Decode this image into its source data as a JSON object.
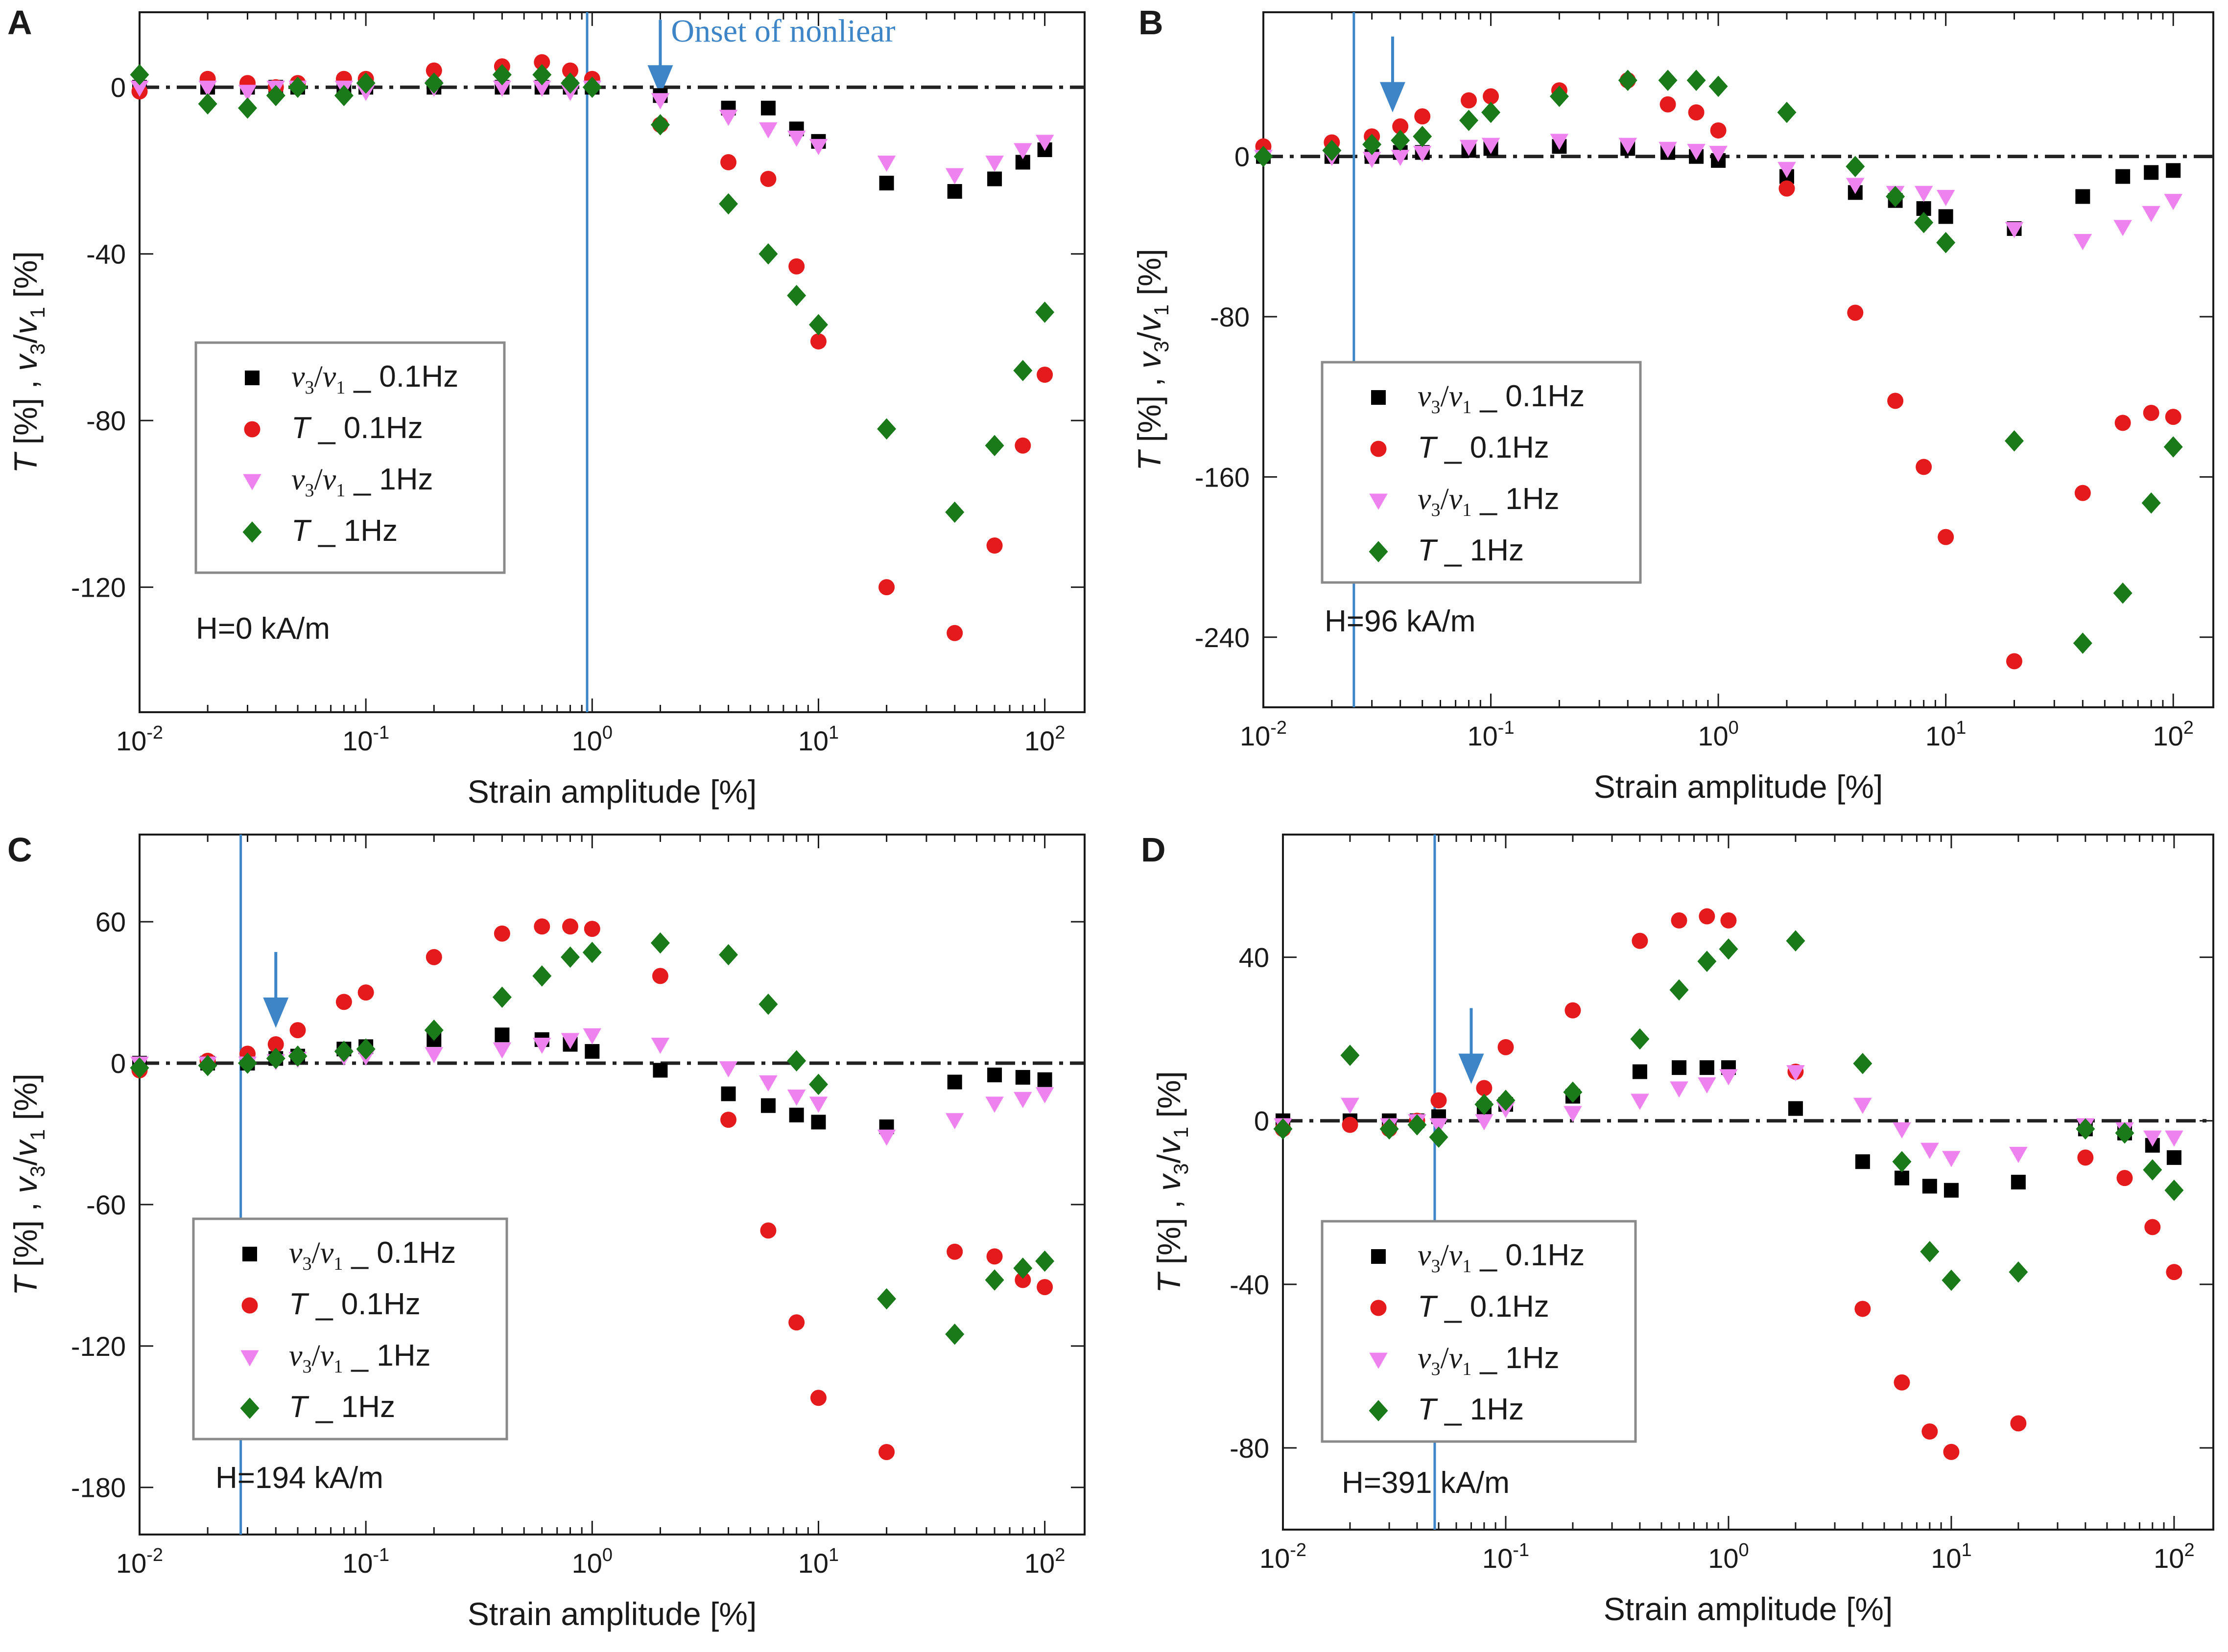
{
  "figure": {
    "xlabel": "Strain amplitude [%]",
    "ylabel_parts": [
      "T",
      " [%] , ",
      "v",
      "3",
      "/",
      "v",
      "1",
      " [%]"
    ],
    "colors": {
      "axis": "#1a1a1a",
      "vline": "#3d85c6",
      "arrow": "#3d85c6",
      "v31_01": "#000000",
      "T_01": "#e41a1c",
      "v31_1": "#ee82ee",
      "T_1": "#1a7a1a"
    },
    "legend_entries": [
      {
        "key": "v31_01",
        "marker": "square",
        "sym_a": "v",
        "sub_a": "3",
        "sym_b": "v",
        "sub_b": "1",
        "suffix": " _ 0.1Hz"
      },
      {
        "key": "T_01",
        "marker": "circle",
        "sym_a": "T",
        "suffix": " _ 0.1Hz"
      },
      {
        "key": "v31_1",
        "marker": "triangle",
        "sym_a": "v",
        "sub_a": "3",
        "sym_b": "v",
        "sub_b": "1",
        "suffix": " _ 1Hz"
      },
      {
        "key": "T_1",
        "marker": "diamond",
        "sym_a": "T",
        "suffix": " _ 1Hz"
      }
    ]
  },
  "chart_data": [
    {
      "panel_label": "A",
      "type": "scatter",
      "x_scale": "log",
      "xlim": [
        0.01,
        150
      ],
      "ylim": [
        -150,
        18
      ],
      "yticks": [
        0,
        -40,
        -80,
        -120
      ],
      "x_tick_labels": [
        {
          "value": 0.01,
          "base": "10",
          "exp": "-2"
        },
        {
          "value": 0.1,
          "base": "10",
          "exp": "-1"
        },
        {
          "value": 1,
          "base": "10",
          "exp": "0"
        },
        {
          "value": 10,
          "base": "10",
          "exp": "1"
        },
        {
          "value": 100,
          "base": "10",
          "exp": "2"
        }
      ],
      "field_label": "H=0 kA/m",
      "vline_x": 0.95,
      "arrow_x": 2.0,
      "arrow_tip_y": -2,
      "annotation": "Onset of nonliear",
      "series": [
        {
          "key": "v31_01",
          "x": [
            0.01,
            0.02,
            0.03,
            0.04,
            0.05,
            0.08,
            0.1,
            0.2,
            0.4,
            0.6,
            0.8,
            1,
            2,
            4,
            6,
            8,
            10,
            20,
            40,
            60,
            80,
            100
          ],
          "y": [
            0,
            0,
            0,
            0,
            0,
            0,
            0,
            0,
            0,
            0,
            0,
            0,
            -2,
            -5,
            -5,
            -10,
            -13,
            -23,
            -25,
            -22,
            -18,
            -15
          ]
        },
        {
          "key": "T_01",
          "x": [
            0.01,
            0.02,
            0.03,
            0.04,
            0.05,
            0.08,
            0.1,
            0.2,
            0.4,
            0.6,
            0.8,
            1,
            2,
            4,
            6,
            8,
            10,
            20,
            40,
            60,
            80,
            100
          ],
          "y": [
            -1,
            2,
            1,
            0,
            1,
            2,
            2,
            4,
            5,
            6,
            4,
            2,
            -9,
            -18,
            -22,
            -43,
            -61,
            -120,
            -131,
            -110,
            -86,
            -69
          ]
        },
        {
          "key": "v31_1",
          "x": [
            0.01,
            0.02,
            0.03,
            0.04,
            0.05,
            0.08,
            0.1,
            0.2,
            0.4,
            0.6,
            0.8,
            1,
            2,
            4,
            6,
            8,
            10,
            20,
            40,
            60,
            80,
            100
          ],
          "y": [
            0,
            0,
            -1,
            0,
            0,
            0,
            -1,
            0,
            0,
            0,
            -1,
            0,
            -3,
            -7,
            -10,
            -12,
            -14,
            -18,
            -21,
            -18,
            -15,
            -13
          ]
        },
        {
          "key": "T_1",
          "x": [
            0.01,
            0.02,
            0.03,
            0.04,
            0.05,
            0.08,
            0.1,
            0.2,
            0.4,
            0.6,
            0.8,
            1,
            2,
            4,
            6,
            8,
            10,
            20,
            40,
            60,
            80,
            100
          ],
          "y": [
            3,
            -4,
            -5,
            -2,
            0,
            -2,
            1,
            1,
            3,
            3,
            1,
            0,
            -9,
            -28,
            -40,
            -50,
            -57,
            -82,
            -102,
            -86,
            -68,
            -54
          ]
        }
      ]
    },
    {
      "panel_label": "B",
      "type": "scatter",
      "x_scale": "log",
      "xlim": [
        0.01,
        150
      ],
      "ylim": [
        -275,
        72
      ],
      "yticks": [
        0,
        -80,
        -160,
        -240
      ],
      "x_tick_labels": [
        {
          "value": 0.01,
          "base": "10",
          "exp": "-2"
        },
        {
          "value": 0.1,
          "base": "10",
          "exp": "-1"
        },
        {
          "value": 1,
          "base": "10",
          "exp": "0"
        },
        {
          "value": 10,
          "base": "10",
          "exp": "1"
        },
        {
          "value": 100,
          "base": "10",
          "exp": "2"
        }
      ],
      "field_label": "H=96 kA/m",
      "vline_x": 0.025,
      "arrow_x": 0.037,
      "arrow_tip_y": 22,
      "series": [
        {
          "key": "v31_01",
          "x": [
            0.01,
            0.02,
            0.03,
            0.04,
            0.05,
            0.08,
            0.1,
            0.2,
            0.4,
            0.6,
            0.8,
            1,
            2,
            4,
            6,
            8,
            10,
            20,
            40,
            60,
            80,
            100
          ],
          "y": [
            0,
            0,
            0,
            2,
            2,
            3,
            4,
            5,
            4,
            2,
            0,
            -2,
            -10,
            -18,
            -22,
            -26,
            -30,
            -36,
            -20,
            -10,
            -8,
            -7
          ]
        },
        {
          "key": "T_01",
          "x": [
            0.01,
            0.02,
            0.03,
            0.04,
            0.05,
            0.08,
            0.1,
            0.2,
            0.4,
            0.6,
            0.8,
            1,
            2,
            4,
            6,
            8,
            10,
            20,
            40,
            60,
            80,
            100
          ],
          "y": [
            5,
            7,
            10,
            15,
            20,
            28,
            30,
            33,
            38,
            26,
            22,
            13,
            -16,
            -78,
            -122,
            -155,
            -190,
            -252,
            -168,
            -133,
            -128,
            -130
          ]
        },
        {
          "key": "v31_1",
          "x": [
            0.01,
            0.02,
            0.03,
            0.04,
            0.05,
            0.08,
            0.1,
            0.2,
            0.4,
            0.6,
            0.8,
            1,
            2,
            4,
            6,
            8,
            10,
            20,
            40,
            60,
            80,
            100
          ],
          "y": [
            0,
            0,
            -1,
            0,
            2,
            5,
            6,
            8,
            6,
            4,
            3,
            2,
            -6,
            -14,
            -18,
            -18,
            -20,
            -36,
            -42,
            -35,
            -28,
            -22
          ]
        },
        {
          "key": "T_1",
          "x": [
            0.01,
            0.02,
            0.03,
            0.04,
            0.05,
            0.08,
            0.1,
            0.2,
            0.4,
            0.6,
            0.8,
            1,
            2,
            4,
            6,
            8,
            10,
            20,
            40,
            60,
            80,
            100
          ],
          "y": [
            0,
            3,
            6,
            8,
            10,
            18,
            22,
            30,
            38,
            38,
            38,
            35,
            22,
            -5,
            -20,
            -33,
            -43,
            -142,
            -243,
            -218,
            -173,
            -145
          ]
        }
      ]
    },
    {
      "panel_label": "C",
      "type": "scatter",
      "x_scale": "log",
      "xlim": [
        0.01,
        150
      ],
      "ylim": [
        -200,
        97
      ],
      "yticks": [
        60,
        0,
        -60,
        -120,
        -180
      ],
      "x_tick_labels": [
        {
          "value": 0.01,
          "base": "10",
          "exp": "-2"
        },
        {
          "value": 0.1,
          "base": "10",
          "exp": "-1"
        },
        {
          "value": 1,
          "base": "10",
          "exp": "0"
        },
        {
          "value": 10,
          "base": "10",
          "exp": "1"
        },
        {
          "value": 100,
          "base": "10",
          "exp": "2"
        }
      ],
      "field_label": "H=194 kA/m",
      "vline_x": 0.028,
      "arrow_x": 0.04,
      "arrow_tip_y": 15,
      "series": [
        {
          "key": "v31_01",
          "x": [
            0.01,
            0.02,
            0.03,
            0.04,
            0.05,
            0.08,
            0.1,
            0.2,
            0.4,
            0.6,
            0.8,
            1,
            2,
            4,
            6,
            8,
            10,
            20,
            40,
            60,
            80,
            100
          ],
          "y": [
            0,
            0,
            0,
            2,
            3,
            6,
            7,
            10,
            12,
            10,
            8,
            5,
            -3,
            -13,
            -18,
            -22,
            -25,
            -27,
            -8,
            -5,
            -6,
            -7
          ]
        },
        {
          "key": "T_01",
          "x": [
            0.01,
            0.02,
            0.03,
            0.04,
            0.05,
            0.08,
            0.1,
            0.2,
            0.4,
            0.6,
            0.8,
            1,
            2,
            4,
            6,
            8,
            10,
            20,
            40,
            60,
            80,
            100
          ],
          "y": [
            -3,
            1,
            4,
            8,
            14,
            26,
            30,
            45,
            55,
            58,
            58,
            57,
            37,
            -24,
            -71,
            -110,
            -142,
            -165,
            -80,
            -82,
            -92,
            -95
          ]
        },
        {
          "key": "v31_1",
          "x": [
            0.01,
            0.02,
            0.03,
            0.04,
            0.05,
            0.08,
            0.1,
            0.2,
            0.4,
            0.6,
            0.8,
            1,
            2,
            4,
            6,
            8,
            10,
            20,
            40,
            60,
            80,
            100
          ],
          "y": [
            0,
            0,
            0,
            1,
            2,
            3,
            3,
            4,
            6,
            8,
            10,
            12,
            8,
            -2,
            -8,
            -14,
            -17,
            -31,
            -24,
            -17,
            -15,
            -13
          ]
        },
        {
          "key": "T_1",
          "x": [
            0.01,
            0.02,
            0.03,
            0.04,
            0.05,
            0.08,
            0.1,
            0.2,
            0.4,
            0.6,
            0.8,
            1,
            2,
            4,
            6,
            8,
            10,
            20,
            40,
            60,
            80,
            100
          ],
          "y": [
            -2,
            -1,
            0,
            2,
            3,
            5,
            6,
            14,
            28,
            37,
            45,
            47,
            51,
            46,
            25,
            1,
            -9,
            -100,
            -115,
            -92,
            -87,
            -84
          ]
        }
      ]
    },
    {
      "panel_label": "D",
      "type": "scatter",
      "x_scale": "log",
      "xlim": [
        0.01,
        150
      ],
      "ylim": [
        -100,
        70
      ],
      "yticks": [
        40,
        0,
        -40,
        -80
      ],
      "x_tick_labels": [
        {
          "value": 0.01,
          "base": "10",
          "exp": "-2"
        },
        {
          "value": 0.1,
          "base": "10",
          "exp": "-1"
        },
        {
          "value": 1,
          "base": "10",
          "exp": "0"
        },
        {
          "value": 10,
          "base": "10",
          "exp": "1"
        },
        {
          "value": 100,
          "base": "10",
          "exp": "2"
        }
      ],
      "field_label": "H=391 kA/m",
      "vline_x": 0.048,
      "arrow_x": 0.07,
      "arrow_tip_y": 9,
      "series": [
        {
          "key": "v31_01",
          "x": [
            0.01,
            0.02,
            0.03,
            0.04,
            0.05,
            0.08,
            0.1,
            0.2,
            0.4,
            0.6,
            0.8,
            1,
            2,
            4,
            6,
            8,
            10,
            20,
            40,
            60,
            80,
            100
          ],
          "y": [
            0,
            0,
            0,
            0,
            1,
            3,
            4,
            6,
            12,
            13,
            13,
            13,
            3,
            -10,
            -14,
            -16,
            -17,
            -15,
            -2,
            -3,
            -6,
            -9
          ]
        },
        {
          "key": "T_01",
          "x": [
            0.01,
            0.02,
            0.03,
            0.04,
            0.05,
            0.08,
            0.1,
            0.2,
            0.4,
            0.6,
            0.8,
            1,
            2,
            4,
            6,
            8,
            10,
            20,
            40,
            60,
            80,
            100
          ],
          "y": [
            -2,
            -1,
            -2,
            0,
            5,
            8,
            18,
            27,
            44,
            49,
            50,
            49,
            12,
            -46,
            -64,
            -76,
            -81,
            -74,
            -9,
            -14,
            -26,
            -37
          ]
        },
        {
          "key": "v31_1",
          "x": [
            0.01,
            0.02,
            0.03,
            0.04,
            0.05,
            0.08,
            0.1,
            0.2,
            0.4,
            0.6,
            0.8,
            1,
            2,
            4,
            6,
            8,
            10,
            20,
            40,
            60,
            80,
            100
          ],
          "y": [
            -1,
            4,
            -1,
            0,
            -1,
            0,
            3,
            2,
            5,
            8,
            9,
            11,
            12,
            4,
            -2,
            -7,
            -9,
            -8,
            -1,
            -2,
            -4,
            -4
          ]
        },
        {
          "key": "T_1",
          "x": [
            0.01,
            0.02,
            0.03,
            0.04,
            0.05,
            0.08,
            0.1,
            0.2,
            0.4,
            0.6,
            0.8,
            1,
            2,
            4,
            6,
            8,
            10,
            20,
            40,
            60,
            80,
            100
          ],
          "y": [
            -2,
            16,
            -2,
            -1,
            -4,
            4,
            5,
            7,
            20,
            32,
            39,
            42,
            44,
            14,
            -10,
            -32,
            -39,
            -37,
            -2,
            -3,
            -12,
            -17
          ]
        }
      ]
    }
  ]
}
